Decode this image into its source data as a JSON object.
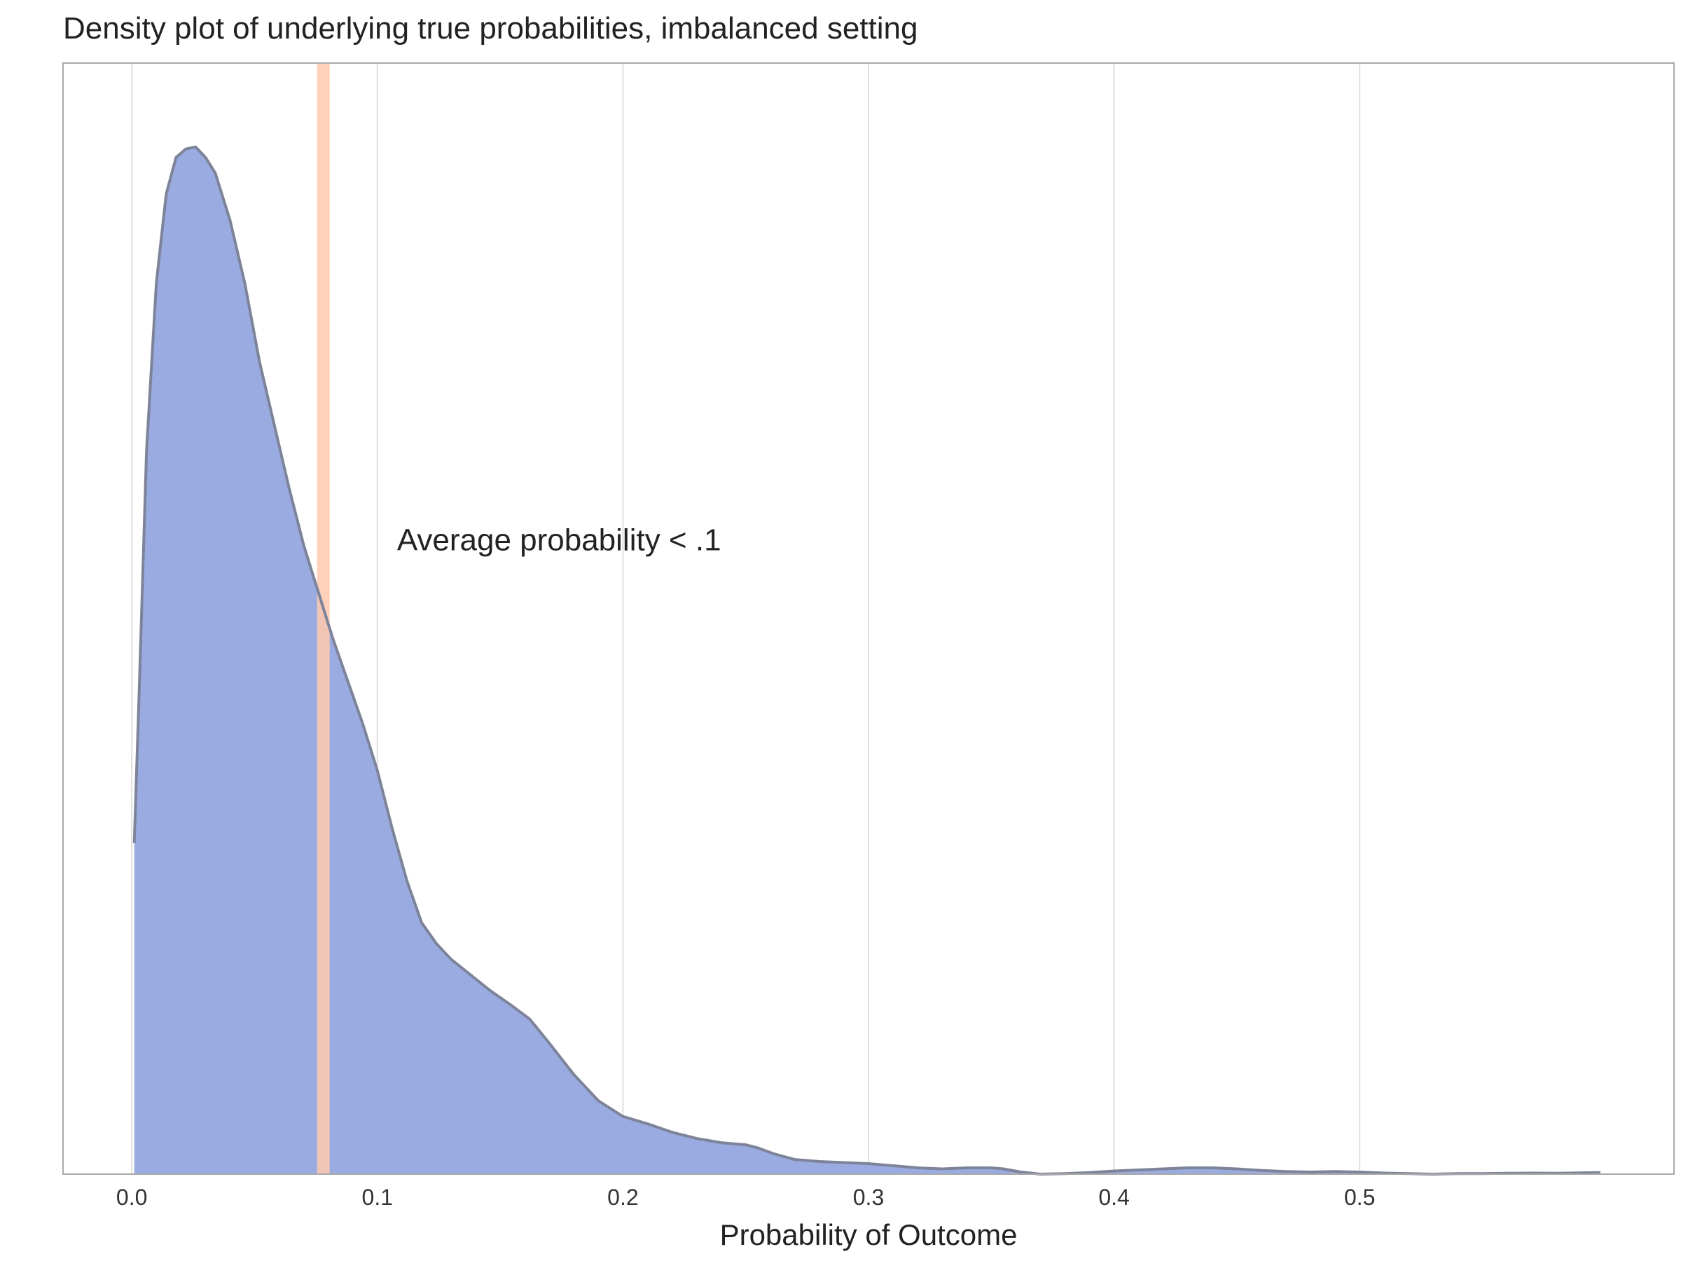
{
  "chart_data": {
    "type": "area",
    "title": "Density plot of underlying true probabilities, imbalanced setting",
    "xlabel": "Probability of Outcome",
    "ylabel": "",
    "xlim": [
      -0.028,
      0.628
    ],
    "ylim": [
      0,
      10.6
    ],
    "x_ticks": [
      0.0,
      0.1,
      0.2,
      0.3,
      0.4,
      0.5
    ],
    "x_tick_labels": [
      "0.0",
      "0.1",
      "0.2",
      "0.3",
      "0.4",
      "0.5"
    ],
    "grid": "vertical",
    "fill_color": "#9AABE1",
    "line_color": "#7D8499",
    "mean_line": {
      "x": 0.078,
      "color": "#FFC9AE"
    },
    "annotation": {
      "text": "Average probability < .1",
      "x": 0.108,
      "y": 5.95
    },
    "series": [
      {
        "x": [
          0.001,
          0.003,
          0.006,
          0.01,
          0.014,
          0.018,
          0.022,
          0.026,
          0.03,
          0.034,
          0.04,
          0.046,
          0.052,
          0.058,
          0.064,
          0.07,
          0.076,
          0.082,
          0.088,
          0.094,
          0.1,
          0.106,
          0.112,
          0.118,
          0.124,
          0.13,
          0.138,
          0.146,
          0.154,
          0.162,
          0.17,
          0.18,
          0.19,
          0.2,
          0.21,
          0.22,
          0.23,
          0.24,
          0.25,
          0.255,
          0.262,
          0.27,
          0.28,
          0.29,
          0.3,
          0.31,
          0.32,
          0.33,
          0.34,
          0.35,
          0.355,
          0.362,
          0.37,
          0.38,
          0.39,
          0.4,
          0.41,
          0.42,
          0.43,
          0.44,
          0.45,
          0.46,
          0.47,
          0.48,
          0.49,
          0.5,
          0.51,
          0.52,
          0.53,
          0.54,
          0.55,
          0.56,
          0.57,
          0.58,
          0.598
        ],
        "y": [
          3.16,
          4.6,
          6.9,
          8.5,
          9.35,
          9.7,
          9.78,
          9.8,
          9.7,
          9.55,
          9.1,
          8.5,
          7.75,
          7.15,
          6.55,
          6.0,
          5.55,
          5.1,
          4.7,
          4.3,
          3.85,
          3.3,
          2.8,
          2.4,
          2.2,
          2.05,
          1.9,
          1.75,
          1.62,
          1.48,
          1.25,
          0.95,
          0.7,
          0.55,
          0.48,
          0.4,
          0.34,
          0.3,
          0.28,
          0.25,
          0.19,
          0.14,
          0.12,
          0.11,
          0.1,
          0.08,
          0.06,
          0.05,
          0.06,
          0.06,
          0.05,
          0.02,
          0.0,
          0.005,
          0.015,
          0.03,
          0.04,
          0.05,
          0.06,
          0.06,
          0.05,
          0.035,
          0.025,
          0.02,
          0.025,
          0.02,
          0.01,
          0.005,
          0.0,
          0.005,
          0.005,
          0.008,
          0.01,
          0.008,
          0.015
        ]
      }
    ]
  }
}
